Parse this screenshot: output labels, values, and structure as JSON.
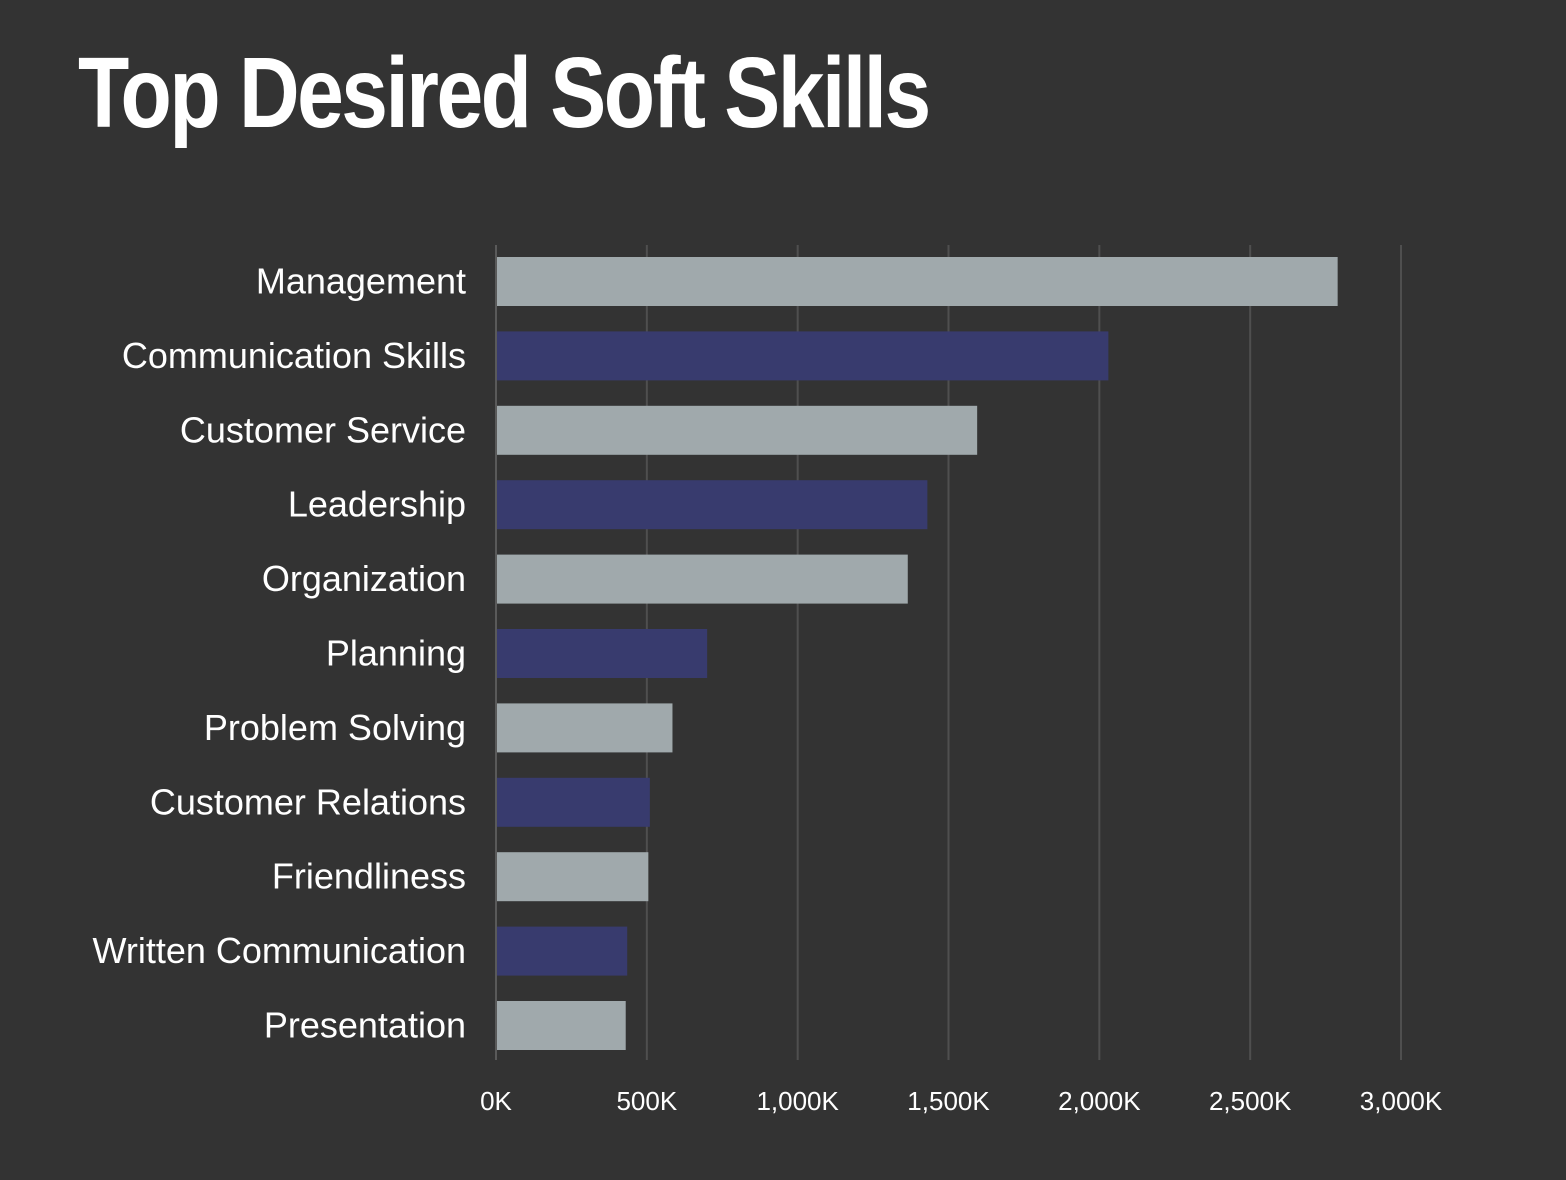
{
  "chart_data": {
    "type": "bar",
    "orientation": "horizontal",
    "title": "Top Desired Soft Skills",
    "xlabel": "",
    "ylabel": "",
    "categories": [
      "Management",
      "Communication Skills",
      "Customer Service",
      "Leadership",
      "Organization",
      "Planning",
      "Problem Solving",
      "Customer Relations",
      "Friendliness",
      "Written Communication",
      "Presentation"
    ],
    "values": [
      2790,
      2030,
      1595,
      1430,
      1365,
      700,
      585,
      510,
      505,
      435,
      430
    ],
    "value_unit": "K",
    "xlim": [
      0,
      3000
    ],
    "x_ticks": [
      0,
      500,
      1000,
      1500,
      2000,
      2500,
      3000
    ],
    "x_tick_labels": [
      "0K",
      "500K",
      "1,000K",
      "1,500K",
      "2,000K",
      "2,500K",
      "3,000K"
    ],
    "grid": "vertical",
    "legend": "none",
    "colors": {
      "background": "#333333",
      "bar_light": "#a0a9ac",
      "bar_dark": "#383b6e",
      "grid": "#4f4f4f",
      "text": "#ffffff"
    }
  }
}
